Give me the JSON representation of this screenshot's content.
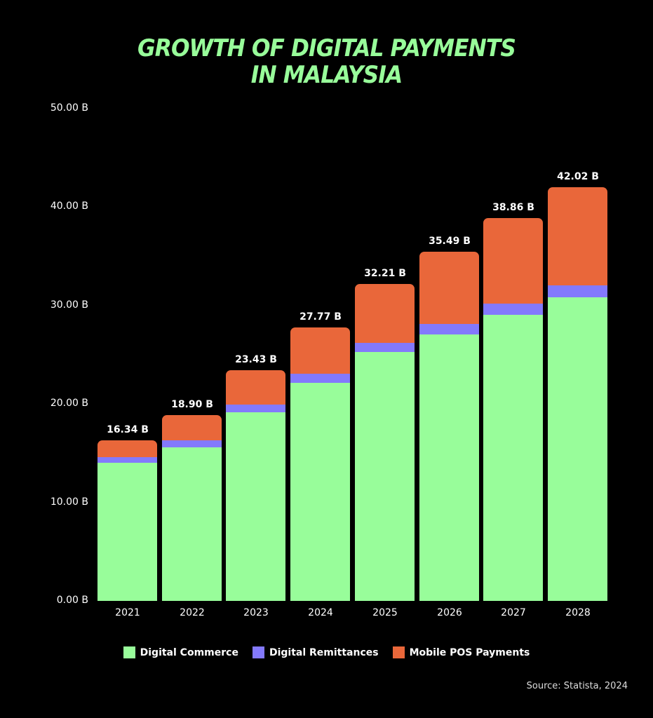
{
  "title_line1": "GROWTH OF DIGITAL PAYMENTS",
  "title_line2": "IN MALAYSIA",
  "source": "Source: Statista, 2024",
  "colors": {
    "background": "#000000",
    "title": "#98fd9a",
    "Digital Commerce": "#98fd9a",
    "Digital Remittances": "#8379fc",
    "Mobile POS Payments": "#e9673a"
  },
  "legend": [
    "Digital Commerce",
    "Digital Remittances",
    "Mobile POS Payments"
  ],
  "yticks": [
    "0.00 B",
    "10.00 B",
    "20.00 B",
    "30.00 B",
    "40.00 B",
    "50.00 B"
  ],
  "chart_data": {
    "type": "bar",
    "stacked": true,
    "title": "Growth of Digital Payments in Malaysia",
    "xlabel": "",
    "ylabel": "",
    "ylim": [
      0,
      50
    ],
    "grid": false,
    "legend_position": "bottom",
    "categories": [
      "2021",
      "2022",
      "2023",
      "2024",
      "2025",
      "2026",
      "2027",
      "2028"
    ],
    "series": [
      {
        "name": "Digital Commerce",
        "values": [
          14.03,
          15.6,
          19.16,
          22.15,
          25.28,
          27.07,
          29.06,
          30.84
        ]
      },
      {
        "name": "Digital Remittances",
        "values": [
          0.57,
          0.71,
          0.78,
          0.93,
          0.93,
          1.07,
          1.14,
          1.21
        ]
      },
      {
        "name": "Mobile POS Payments",
        "values": [
          1.74,
          2.59,
          3.49,
          4.69,
          6.0,
          7.35,
          8.66,
          9.97
        ]
      }
    ],
    "totals": [
      16.34,
      18.9,
      23.43,
      27.77,
      32.21,
      35.49,
      38.86,
      42.02
    ],
    "total_labels": [
      "16.34 B",
      "18.90 B",
      "23.43 B",
      "27.77 B",
      "32.21 B",
      "35.49 B",
      "38.86 B",
      "42.02 B"
    ],
    "source": "Statista, 2024"
  }
}
